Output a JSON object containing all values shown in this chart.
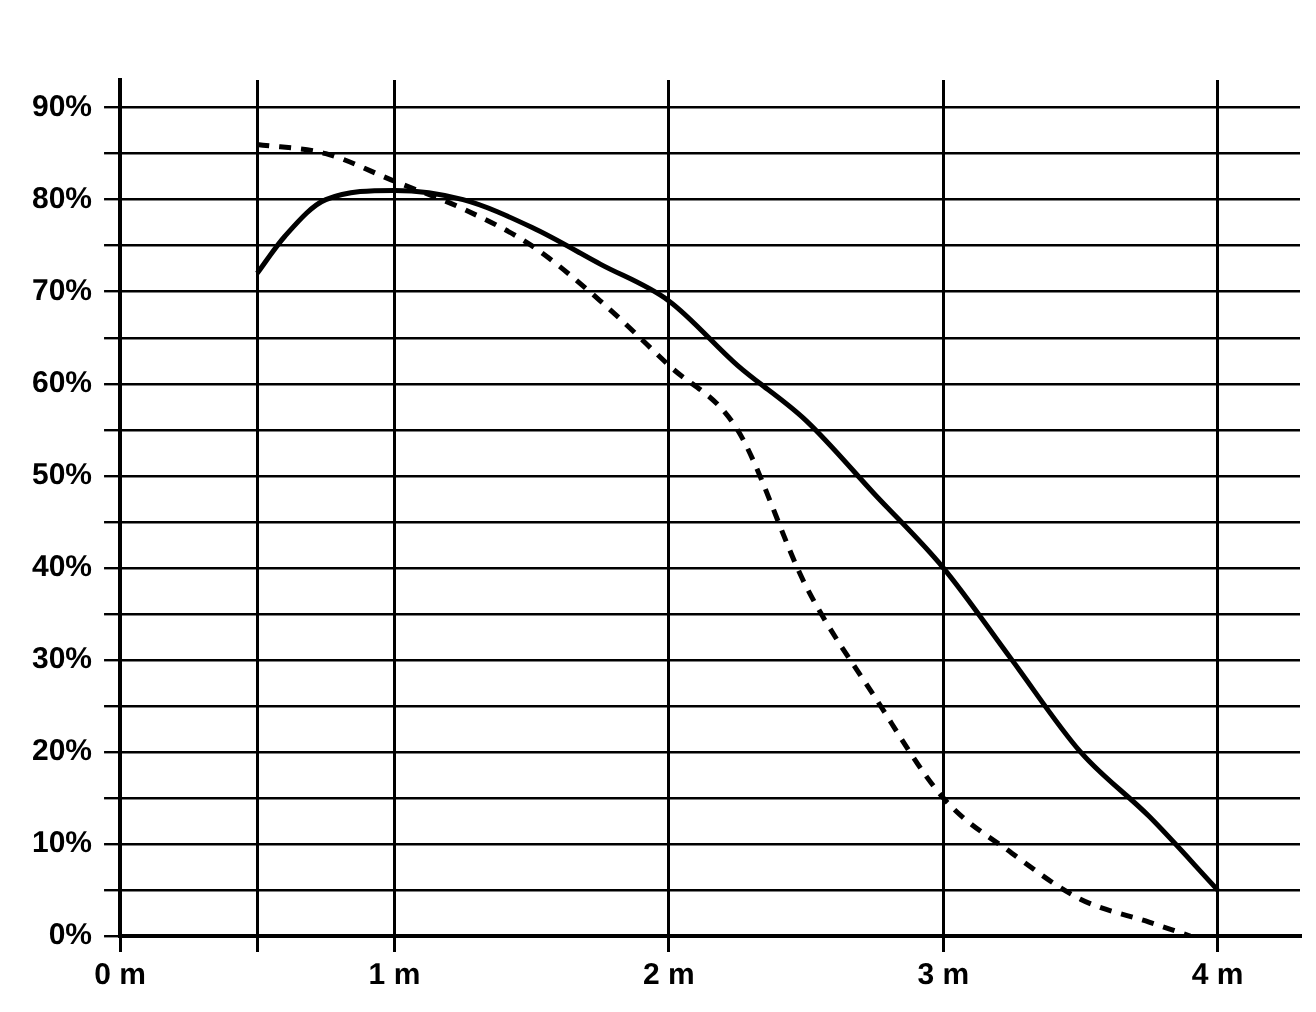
{
  "chart_data": {
    "type": "line",
    "xlim": [
      0,
      4.3
    ],
    "ylim": [
      0,
      93
    ],
    "xticks": [
      {
        "value": 0,
        "label": "0 m"
      },
      {
        "value": 0.5,
        "label": null
      },
      {
        "value": 1,
        "label": "1 m"
      },
      {
        "value": 2,
        "label": "2 m"
      },
      {
        "value": 3,
        "label": "3 m"
      },
      {
        "value": 4,
        "label": "4 m"
      }
    ],
    "yticks": [
      {
        "value": 0,
        "label": "0%"
      },
      {
        "value": 5,
        "label": null
      },
      {
        "value": 10,
        "label": "10%"
      },
      {
        "value": 15,
        "label": null
      },
      {
        "value": 20,
        "label": "20%"
      },
      {
        "value": 25,
        "label": null
      },
      {
        "value": 30,
        "label": "30%"
      },
      {
        "value": 35,
        "label": null
      },
      {
        "value": 40,
        "label": "40%"
      },
      {
        "value": 45,
        "label": null
      },
      {
        "value": 50,
        "label": "50%"
      },
      {
        "value": 55,
        "label": null
      },
      {
        "value": 60,
        "label": "60%"
      },
      {
        "value": 65,
        "label": null
      },
      {
        "value": 70,
        "label": "70%"
      },
      {
        "value": 75,
        "label": null
      },
      {
        "value": 80,
        "label": "80%"
      },
      {
        "value": 85,
        "label": null
      },
      {
        "value": 90,
        "label": "90%"
      }
    ],
    "grid": true,
    "marker": "none",
    "series": [
      {
        "color": "#000000",
        "line_style": "solid",
        "x": [
          0.5,
          0.6,
          0.75,
          1,
          1.25,
          1.5,
          1.75,
          2,
          2.25,
          2.5,
          2.75,
          3,
          3.25,
          3.5,
          3.75,
          4
        ],
        "values": [
          72,
          76,
          80,
          81,
          80,
          77,
          73,
          69,
          62,
          56,
          48,
          40,
          30,
          20,
          13,
          5
        ]
      },
      {
        "color": "#000000",
        "line_style": "dashed",
        "x": [
          0.5,
          0.75,
          1,
          1.25,
          1.5,
          1.75,
          2,
          2.25,
          2.5,
          2.75,
          3,
          3.25,
          3.5,
          3.75,
          3.9
        ],
        "values": [
          86,
          85,
          82,
          79,
          75,
          69,
          62,
          55,
          38,
          26,
          15,
          9,
          4,
          1.5,
          0
        ]
      }
    ]
  }
}
